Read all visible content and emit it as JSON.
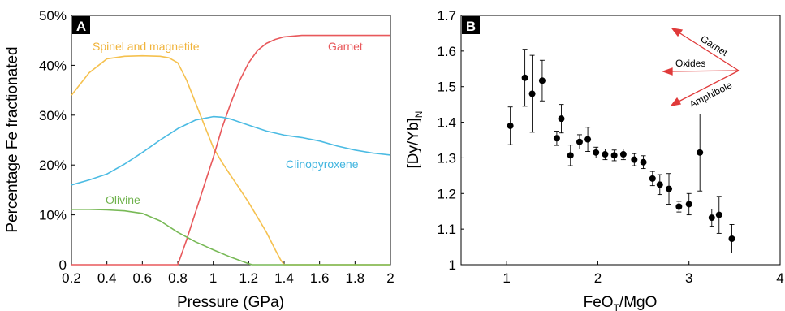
{
  "chart_data": [
    {
      "panel": "A",
      "type": "line",
      "xlabel": "Pressure (GPa)",
      "ylabel": "Percentage Fe fractionated",
      "xlim": [
        0.2,
        2.0
      ],
      "ylim": [
        0,
        50
      ],
      "xticks": [
        "0.2",
        "0.4",
        "0.6",
        "0.8",
        "1",
        "1.2",
        "1.4",
        "1.6",
        "1.8",
        "2"
      ],
      "yticks": [
        "0",
        "10%",
        "20%",
        "30%",
        "40%",
        "50%"
      ],
      "grid": false,
      "series": [
        {
          "name": "Spinel and magnetite",
          "color": "#f5c14f",
          "x": [
            0.2,
            0.3,
            0.4,
            0.5,
            0.6,
            0.7,
            0.75,
            0.8,
            0.85,
            0.9,
            0.95,
            1.0,
            1.05,
            1.1,
            1.15,
            1.2,
            1.25,
            1.3,
            1.35,
            1.38,
            1.4,
            2.0
          ],
          "y": [
            34,
            38.5,
            41.3,
            41.8,
            41.9,
            41.8,
            41.5,
            40.5,
            37,
            32.5,
            28,
            23.5,
            20.5,
            17.8,
            15.2,
            12.5,
            9.5,
            6.5,
            3,
            1,
            0,
            0
          ]
        },
        {
          "name": "Garnet",
          "color": "#e8585b",
          "x": [
            0.2,
            0.8,
            0.85,
            0.9,
            0.95,
            1.0,
            1.05,
            1.1,
            1.15,
            1.2,
            1.25,
            1.3,
            1.35,
            1.4,
            1.5,
            1.6,
            1.7,
            1.8,
            2.0
          ],
          "y": [
            0,
            0,
            5,
            10.5,
            16,
            21.5,
            27.5,
            32.5,
            37,
            40.5,
            43,
            44.4,
            45.2,
            45.7,
            46,
            46,
            46,
            46,
            46
          ]
        },
        {
          "name": "Clinopyroxene",
          "color": "#4bbbe3",
          "x": [
            0.2,
            0.3,
            0.4,
            0.5,
            0.6,
            0.7,
            0.8,
            0.9,
            1.0,
            1.05,
            1.1,
            1.2,
            1.3,
            1.4,
            1.5,
            1.6,
            1.7,
            1.8,
            1.9,
            2.0
          ],
          "y": [
            16,
            17,
            18.2,
            20.2,
            22.5,
            25,
            27.3,
            29,
            29.7,
            29.6,
            29.2,
            28,
            26.8,
            26,
            25.5,
            24.8,
            23.8,
            23,
            22.4,
            22
          ]
        },
        {
          "name": "Olivine",
          "color": "#78b956",
          "x": [
            0.2,
            0.3,
            0.4,
            0.5,
            0.6,
            0.7,
            0.8,
            0.9,
            1.0,
            1.1,
            1.2,
            1.22,
            2.0
          ],
          "y": [
            11.1,
            11.1,
            11,
            10.8,
            10.3,
            8.8,
            6.5,
            4.6,
            3,
            1.5,
            0.2,
            0,
            0
          ]
        }
      ]
    },
    {
      "panel": "B",
      "type": "scatter",
      "xlabel_base": "FeO",
      "xlabel_sub": "T",
      "xlabel_tail": "/MgO",
      "ylabel_base": "[Dy/Yb]",
      "ylabel_sub": "N",
      "xlim": [
        0.5,
        4
      ],
      "ylim": [
        1,
        1.7
      ],
      "xticks": [
        "1",
        "2",
        "3",
        "4"
      ],
      "yticks": [
        "1",
        "1.1",
        "1.2",
        "1.3",
        "1.4",
        "1.5",
        "1.6",
        "1.7"
      ],
      "grid": false,
      "points": [
        {
          "x": 1.04,
          "y": 1.39,
          "lo": 1.337,
          "hi": 1.443
        },
        {
          "x": 1.2,
          "y": 1.525,
          "lo": 1.445,
          "hi": 1.605
        },
        {
          "x": 1.28,
          "y": 1.48,
          "lo": 1.372,
          "hi": 1.588
        },
        {
          "x": 1.39,
          "y": 1.517,
          "lo": 1.46,
          "hi": 1.574
        },
        {
          "x": 1.55,
          "y": 1.355,
          "lo": 1.335,
          "hi": 1.375
        },
        {
          "x": 1.6,
          "y": 1.41,
          "lo": 1.37,
          "hi": 1.45
        },
        {
          "x": 1.7,
          "y": 1.307,
          "lo": 1.278,
          "hi": 1.336
        },
        {
          "x": 1.8,
          "y": 1.345,
          "lo": 1.325,
          "hi": 1.365
        },
        {
          "x": 1.89,
          "y": 1.352,
          "lo": 1.318,
          "hi": 1.386
        },
        {
          "x": 1.98,
          "y": 1.315,
          "lo": 1.3,
          "hi": 1.33
        },
        {
          "x": 2.08,
          "y": 1.31,
          "lo": 1.295,
          "hi": 1.325
        },
        {
          "x": 2.18,
          "y": 1.307,
          "lo": 1.292,
          "hi": 1.322
        },
        {
          "x": 2.28,
          "y": 1.31,
          "lo": 1.295,
          "hi": 1.325
        },
        {
          "x": 2.4,
          "y": 1.295,
          "lo": 1.278,
          "hi": 1.312
        },
        {
          "x": 2.5,
          "y": 1.288,
          "lo": 1.27,
          "hi": 1.306
        },
        {
          "x": 2.6,
          "y": 1.242,
          "lo": 1.222,
          "hi": 1.262
        },
        {
          "x": 2.68,
          "y": 1.225,
          "lo": 1.197,
          "hi": 1.253
        },
        {
          "x": 2.78,
          "y": 1.213,
          "lo": 1.17,
          "hi": 1.256
        },
        {
          "x": 2.89,
          "y": 1.163,
          "lo": 1.148,
          "hi": 1.178
        },
        {
          "x": 3.0,
          "y": 1.17,
          "lo": 1.14,
          "hi": 1.2
        },
        {
          "x": 3.12,
          "y": 1.315,
          "lo": 1.207,
          "hi": 1.423
        },
        {
          "x": 3.25,
          "y": 1.132,
          "lo": 1.108,
          "hi": 1.156
        },
        {
          "x": 3.33,
          "y": 1.14,
          "lo": 1.088,
          "hi": 1.192
        },
        {
          "x": 3.47,
          "y": 1.073,
          "lo": 1.033,
          "hi": 1.113
        }
      ],
      "annotations": {
        "color": "#e03a3a",
        "labels": [
          "Garnet",
          "Oxides",
          "Amphibole"
        ]
      }
    }
  ]
}
